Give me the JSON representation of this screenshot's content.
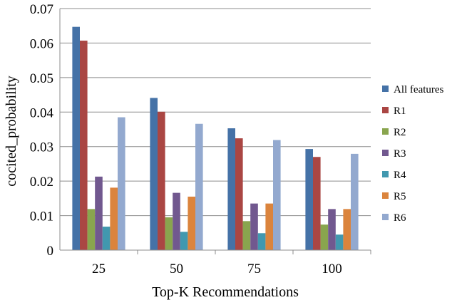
{
  "chart_data": {
    "type": "bar",
    "xlabel": "Top-K Recommendations",
    "ylabel": "cocited_probability",
    "categories": [
      "25",
      "50",
      "75",
      "100"
    ],
    "ylim": [
      0,
      0.07
    ],
    "yticks": [
      "0",
      "0.01",
      "0.02",
      "0.03",
      "0.04",
      "0.05",
      "0.06",
      "0.07"
    ],
    "grid": "horizontal",
    "legend_position": "right",
    "series": [
      {
        "name": "All features",
        "color": "#4572A7",
        "values": [
          0.0647,
          0.0441,
          0.0353,
          0.0293
        ]
      },
      {
        "name": "R1",
        "color": "#AA4643",
        "values": [
          0.0607,
          0.0401,
          0.0324,
          0.027
        ]
      },
      {
        "name": "R2",
        "color": "#89A54E",
        "values": [
          0.0119,
          0.0095,
          0.0084,
          0.0074
        ]
      },
      {
        "name": "R3",
        "color": "#71588F",
        "values": [
          0.0213,
          0.0166,
          0.0135,
          0.0119
        ]
      },
      {
        "name": "R4",
        "color": "#4198AF",
        "values": [
          0.0068,
          0.0053,
          0.0049,
          0.0045
        ]
      },
      {
        "name": "R5",
        "color": "#DB843D",
        "values": [
          0.0181,
          0.0155,
          0.0135,
          0.0119
        ]
      },
      {
        "name": "R6",
        "color": "#93A9CF",
        "values": [
          0.0385,
          0.0366,
          0.0319,
          0.0279
        ]
      }
    ]
  }
}
